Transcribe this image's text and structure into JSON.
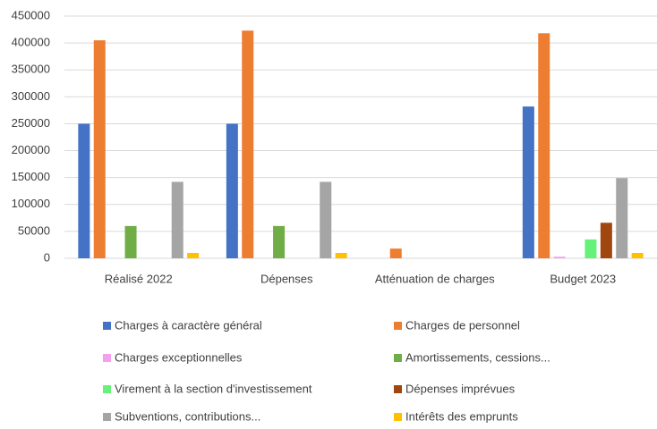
{
  "chart_data": {
    "type": "bar",
    "categories": [
      "Réalisé 2022",
      "Dépenses",
      "Atténuation de charges",
      "Budget 2023"
    ],
    "series": [
      {
        "name": "Charges à caractère général",
        "color": "#4472c4",
        "values": [
          250000,
          250000,
          0,
          282000
        ]
      },
      {
        "name": "Charges de personnel",
        "color": "#ed7d31",
        "values": [
          405000,
          423000,
          18000,
          418000
        ]
      },
      {
        "name": "Charges exceptionnelles",
        "color": "#f4a0f0",
        "values": [
          0,
          0,
          0,
          3000
        ]
      },
      {
        "name": "Amortissements, cessions...",
        "color": "#70ad47",
        "values": [
          60000,
          60000,
          0,
          0
        ]
      },
      {
        "name": "Virement à la section d'investissement",
        "color": "#66f27a",
        "values": [
          0,
          0,
          0,
          35000
        ]
      },
      {
        "name": "Dépenses imprévues",
        "color": "#a0470f",
        "values": [
          0,
          0,
          0,
          66000
        ]
      },
      {
        "name": "Subventions, contributions...",
        "color": "#a5a5a5",
        "values": [
          142000,
          142000,
          0,
          149000
        ]
      },
      {
        "name": "Intérêts des emprunts",
        "color": "#ffc000",
        "values": [
          10000,
          10000,
          0,
          10000
        ]
      }
    ],
    "ylim": [
      0,
      450000
    ],
    "yticks": [
      0,
      50000,
      100000,
      150000,
      200000,
      250000,
      300000,
      350000,
      400000,
      450000
    ],
    "grid": true,
    "legend": "bottom"
  }
}
